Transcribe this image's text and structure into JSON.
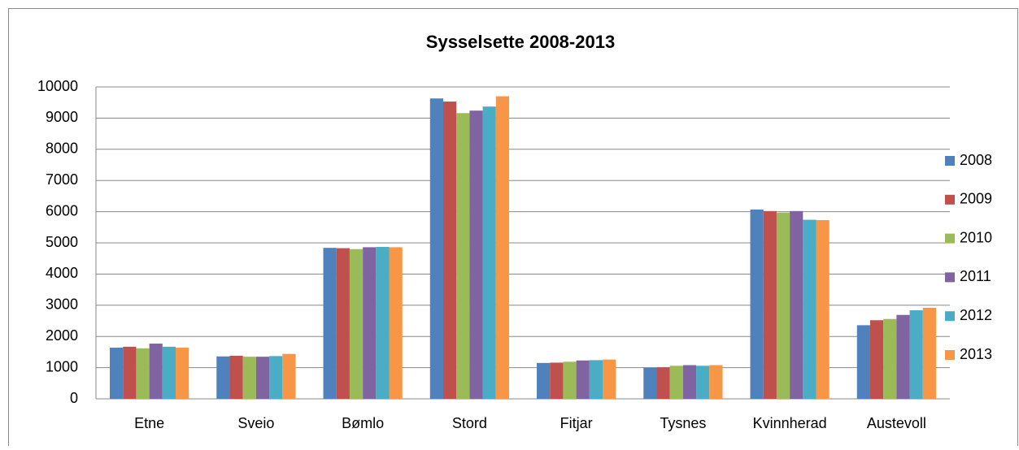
{
  "chart_data": {
    "type": "bar",
    "title": "Sysselsette 2008-2013",
    "categories": [
      "Etne",
      "Sveio",
      "Bømlo",
      "Stord",
      "Fitjar",
      "Tysnes",
      "Kvinnherad",
      "Austevoll"
    ],
    "series": [
      {
        "name": "2008",
        "color": "#4f81bd",
        "values": [
          1640,
          1360,
          4840,
          9630,
          1150,
          1000,
          6070,
          2360
        ]
      },
      {
        "name": "2009",
        "color": "#c0504d",
        "values": [
          1670,
          1380,
          4830,
          9530,
          1160,
          1010,
          6020,
          2520
        ]
      },
      {
        "name": "2010",
        "color": "#9bbb59",
        "values": [
          1620,
          1350,
          4800,
          9160,
          1190,
          1060,
          5970,
          2560
        ]
      },
      {
        "name": "2011",
        "color": "#8064a2",
        "values": [
          1770,
          1350,
          4860,
          9240,
          1230,
          1080,
          6020,
          2690
        ]
      },
      {
        "name": "2012",
        "color": "#4bacc6",
        "values": [
          1670,
          1370,
          4870,
          9370,
          1240,
          1060,
          5740,
          2840
        ]
      },
      {
        "name": "2013",
        "color": "#f79646",
        "values": [
          1640,
          1440,
          4860,
          9700,
          1260,
          1080,
          5730,
          2920
        ]
      }
    ],
    "ylim": [
      0,
      10000
    ],
    "yticks": [
      0,
      1000,
      2000,
      3000,
      4000,
      5000,
      6000,
      7000,
      8000,
      9000,
      10000
    ],
    "grid": true,
    "legend": "right"
  }
}
